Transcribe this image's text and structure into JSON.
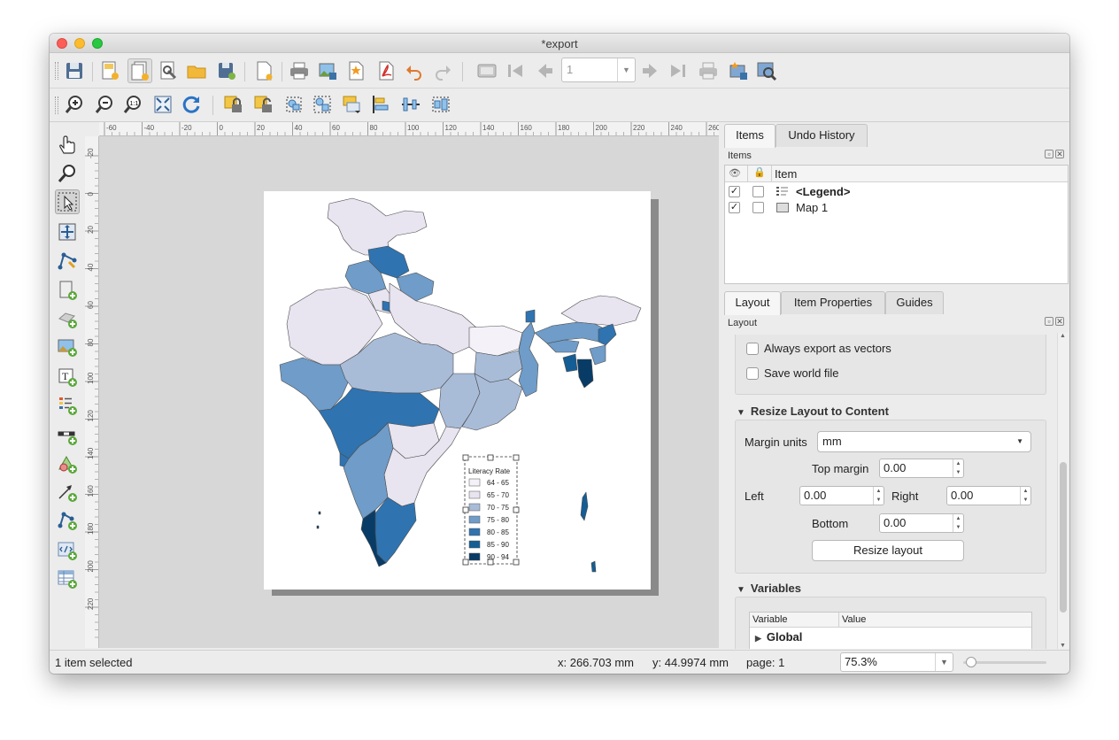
{
  "window": {
    "title": "*export"
  },
  "toolbar1": {
    "buttons": [
      "save-icon",
      "new-layout-icon",
      "duplicate-layout-icon",
      "layout-manager-icon",
      "add-items-from-template-icon",
      "save-as-template-icon",
      "page-icon",
      "print-icon",
      "export-image-icon",
      "export-svg-icon",
      "export-pdf-icon",
      "undo-icon",
      "redo-icon",
      "atlas-preview-icon",
      "first-feature-icon",
      "previous-feature-icon",
      "next-feature-icon",
      "last-feature-icon",
      "print-atlas-icon",
      "export-atlas-icon",
      "atlas-settings-icon"
    ],
    "atlas_page_value": "1"
  },
  "toolbar2": {
    "buttons": [
      "zoom-in-icon",
      "zoom-out-icon",
      "zoom-actual-icon",
      "zoom-full-icon",
      "refresh-icon",
      "lock-items-icon",
      "unlock-items-icon",
      "group-icon",
      "ungroup-icon",
      "raise-items-icon",
      "align-icon",
      "distribute-icon",
      "resize-icon"
    ]
  },
  "left_tools": [
    "pan-tool",
    "zoom-tool",
    "select-tool",
    "move-content-tool",
    "edit-nodes-tool",
    "add-map-tool",
    "add-3d-map-tool",
    "add-picture-tool",
    "add-label-tool",
    "add-legend-tool",
    "add-scalebar-tool",
    "add-shape-tool",
    "add-arrow-tool",
    "add-node-item-tool",
    "add-html-tool",
    "add-attribute-table-tool"
  ],
  "rulers": {
    "horizontal": [
      "-60",
      "-40",
      "-20",
      "0",
      "20",
      "40",
      "60",
      "80",
      "100",
      "120",
      "140",
      "160",
      "180",
      "200",
      "220",
      "240",
      "260"
    ],
    "vertical": [
      "-20",
      "0",
      "20",
      "40",
      "60",
      "80",
      "100",
      "120",
      "140",
      "160",
      "180",
      "200",
      "220"
    ]
  },
  "legend": {
    "title": "Literacy Rate",
    "entries": [
      {
        "label": "64 - 65",
        "color": "#f4f2f8"
      },
      {
        "label": "65 - 70",
        "color": "#e8e4f0"
      },
      {
        "label": "70 - 75",
        "color": "#a8bcd8"
      },
      {
        "label": "75 - 80",
        "color": "#6f9cc8"
      },
      {
        "label": "80 - 85",
        "color": "#2f73b0"
      },
      {
        "label": "85 - 90",
        "color": "#155d95"
      },
      {
        "label": "90 - 94",
        "color": "#083c66"
      }
    ]
  },
  "status": {
    "selection": "1 item selected",
    "x_coord": "x: 266.703 mm",
    "y_coord": "y: 44.9974 mm",
    "page": "page: 1",
    "zoom": "75.3%"
  },
  "items_panel": {
    "tabs": [
      "Items",
      "Undo History"
    ],
    "dock_title": "Items",
    "column_item": "Item",
    "rows": [
      {
        "name": "<Legend>",
        "visible": true,
        "locked": false,
        "bold": true
      },
      {
        "name": "Map 1",
        "visible": true,
        "locked": false,
        "bold": false
      }
    ]
  },
  "layout_panel": {
    "tabs": [
      "Layout",
      "Item Properties",
      "Guides"
    ],
    "dock_title": "Layout",
    "always_export_vectors": "Always export as vectors",
    "save_world_file": "Save world file",
    "resize_section": "Resize Layout to Content",
    "margin_units_label": "Margin units",
    "margin_units_value": "mm",
    "top_margin_label": "Top margin",
    "top_margin_value": "0.00",
    "left_label": "Left",
    "left_value": "0.00",
    "right_label": "Right",
    "right_value": "0.00",
    "bottom_label": "Bottom",
    "bottom_value": "0.00",
    "resize_button": "Resize layout",
    "variables_section": "Variables",
    "var_col_variable": "Variable",
    "var_col_value": "Value",
    "var_global": "Global"
  },
  "colors": {
    "c1": "#f4f2f8",
    "c2": "#e8e4f0",
    "c3": "#a8bcd8",
    "c4": "#6f9cc8",
    "c5": "#2f73b0",
    "c6": "#155d95",
    "c7": "#083c66"
  }
}
